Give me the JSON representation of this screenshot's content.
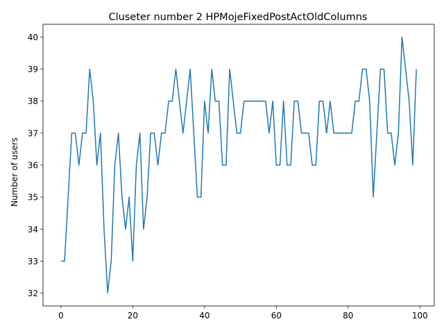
{
  "chart_data": {
    "type": "line",
    "title": "Cluseter number 2 HPMojeFixedPostActOldColumns",
    "xlabel": "",
    "ylabel": "Number of users",
    "xlim": [
      -5,
      104
    ],
    "ylim": [
      31.6,
      40.4
    ],
    "x_ticks": [
      0,
      20,
      40,
      60,
      80,
      100
    ],
    "y_ticks": [
      32,
      33,
      34,
      35,
      36,
      37,
      38,
      39,
      40
    ],
    "grid": false,
    "line_color": "#1f77b4",
    "series": [
      {
        "x": [
          0,
          1,
          2,
          3,
          4,
          5,
          6,
          7,
          8,
          9,
          10,
          11,
          12,
          13,
          14,
          15,
          16,
          17,
          18,
          19,
          20,
          21,
          22,
          23,
          24,
          25,
          26,
          27,
          28,
          29,
          30,
          31,
          32,
          33,
          34,
          35,
          36,
          37,
          38,
          39,
          40,
          41,
          42,
          43,
          44,
          45,
          46,
          47,
          48,
          49,
          50,
          51,
          52,
          53,
          54,
          55,
          56,
          57,
          58,
          59,
          60,
          61,
          62,
          63,
          64,
          65,
          66,
          67,
          68,
          69,
          70,
          71,
          72,
          73,
          74,
          75,
          76,
          77,
          78,
          79,
          80,
          81,
          82,
          83,
          84,
          85,
          86,
          87,
          88,
          89,
          90,
          91,
          92,
          93,
          94,
          95,
          96,
          97,
          98,
          99
        ],
        "values": [
          33,
          33,
          35,
          37,
          37,
          36,
          37,
          37,
          39,
          38,
          36,
          37,
          34,
          32,
          33,
          36,
          37,
          35,
          34,
          35,
          33,
          36,
          37,
          34,
          35,
          37,
          37,
          36,
          37,
          37,
          38,
          38,
          39,
          38,
          37,
          38,
          39,
          37,
          35,
          35,
          38,
          37,
          39,
          38,
          38,
          36,
          36,
          39,
          38,
          37,
          37,
          38,
          38,
          38,
          38,
          38,
          38,
          38,
          37,
          38,
          36,
          36,
          38,
          36,
          36,
          38,
          38,
          37,
          37,
          37,
          36,
          36,
          38,
          38,
          37,
          38,
          37,
          37,
          37,
          37,
          37,
          37,
          38,
          38,
          39,
          39,
          38,
          35,
          37,
          39,
          39,
          37,
          37,
          36,
          37,
          40,
          39,
          38,
          36,
          39
        ]
      }
    ]
  }
}
